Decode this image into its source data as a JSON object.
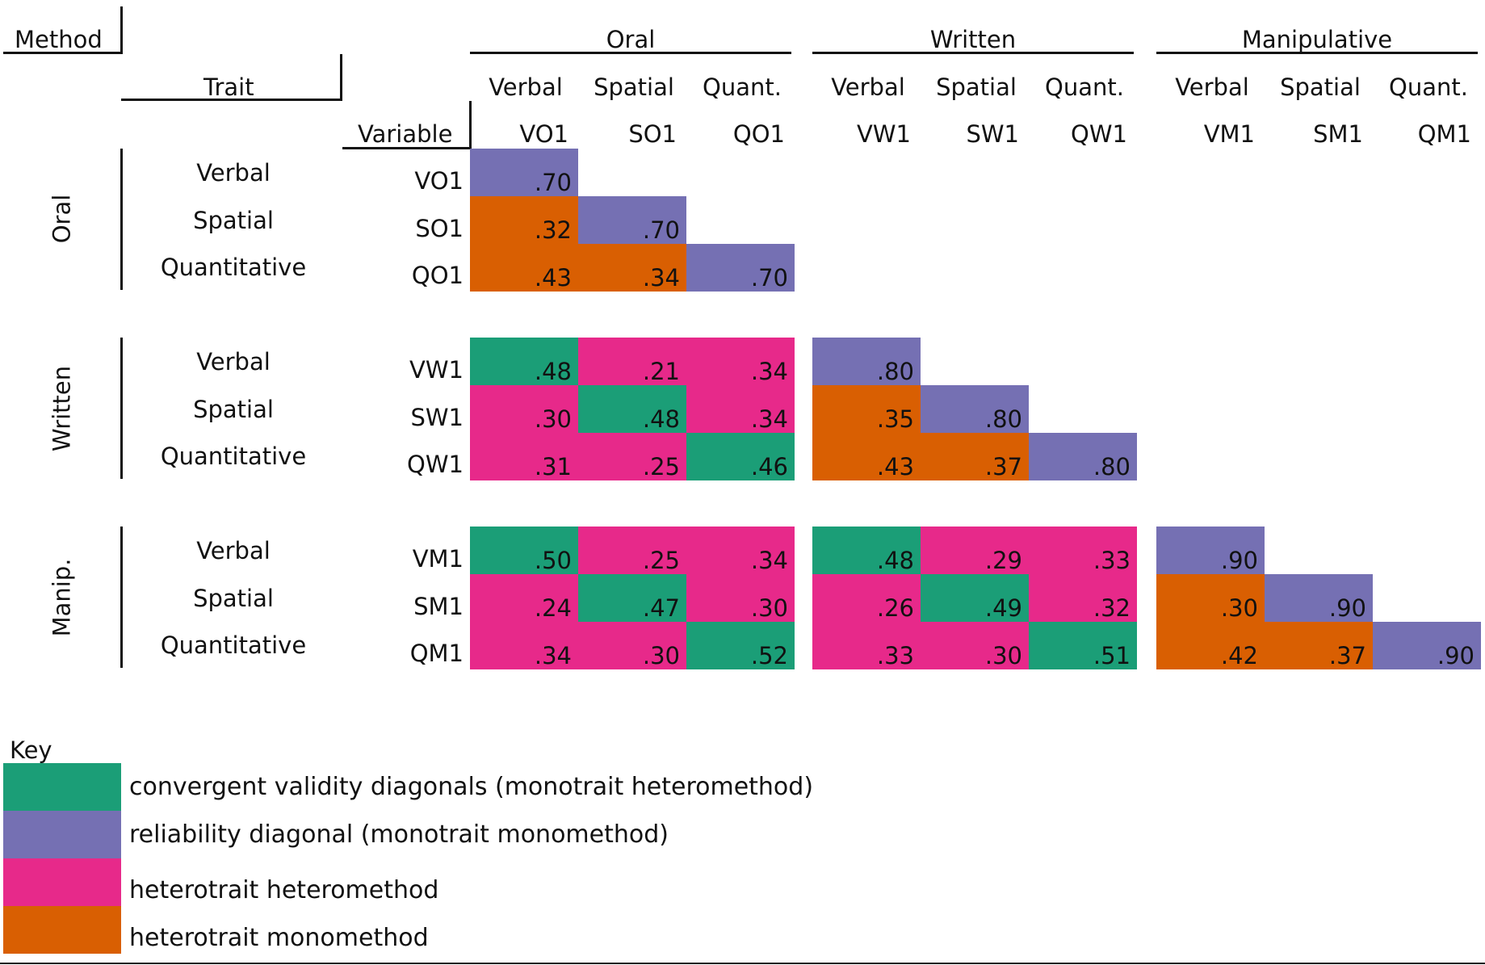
{
  "header": {
    "method_label": "Method",
    "trait_label": "Trait",
    "variable_label": "Variable"
  },
  "methods": [
    "Oral",
    "Written",
    "Manipulative"
  ],
  "method_row_labels": [
    "Oral",
    "Written",
    "Manip."
  ],
  "traits": [
    "Verbal",
    "Spatial",
    "Quant."
  ],
  "row_traits": [
    "Verbal",
    "Spatial",
    "Quantitative"
  ],
  "variables": [
    "VO1",
    "SO1",
    "QO1",
    "VW1",
    "SW1",
    "QW1",
    "VM1",
    "SM1",
    "QM1"
  ],
  "matrix": [
    [
      ".70"
    ],
    [
      ".32",
      ".70"
    ],
    [
      ".43",
      ".34",
      ".70"
    ],
    [
      ".48",
      ".21",
      ".34",
      ".80"
    ],
    [
      ".30",
      ".48",
      ".34",
      ".35",
      ".80"
    ],
    [
      ".31",
      ".25",
      ".46",
      ".43",
      ".37",
      ".80"
    ],
    [
      ".50",
      ".25",
      ".34",
      ".48",
      ".29",
      ".33",
      ".90"
    ],
    [
      ".24",
      ".47",
      ".30",
      ".26",
      ".49",
      ".32",
      ".30",
      ".90"
    ],
    [
      ".34",
      ".30",
      ".52",
      ".33",
      ".30",
      ".51",
      ".42",
      ".37",
      ".90"
    ]
  ],
  "colors": {
    "convergent": "#1b9e77",
    "reliability": "#7570b3",
    "heterotrait_heteromethod": "#e7298a",
    "heterotrait_monomethod": "#d95f02"
  },
  "key": {
    "title": "Key",
    "items": [
      {
        "label": "convergent validity diagonals (monotrait heteromethod)",
        "color": "#1b9e77"
      },
      {
        "label": "reliability diagonal (monotrait monomethod)",
        "color": "#7570b3"
      },
      {
        "label": "heterotrait heteromethod",
        "color": "#e7298a"
      },
      {
        "label": "heterotrait monomethod",
        "color": "#d95f02"
      }
    ]
  }
}
